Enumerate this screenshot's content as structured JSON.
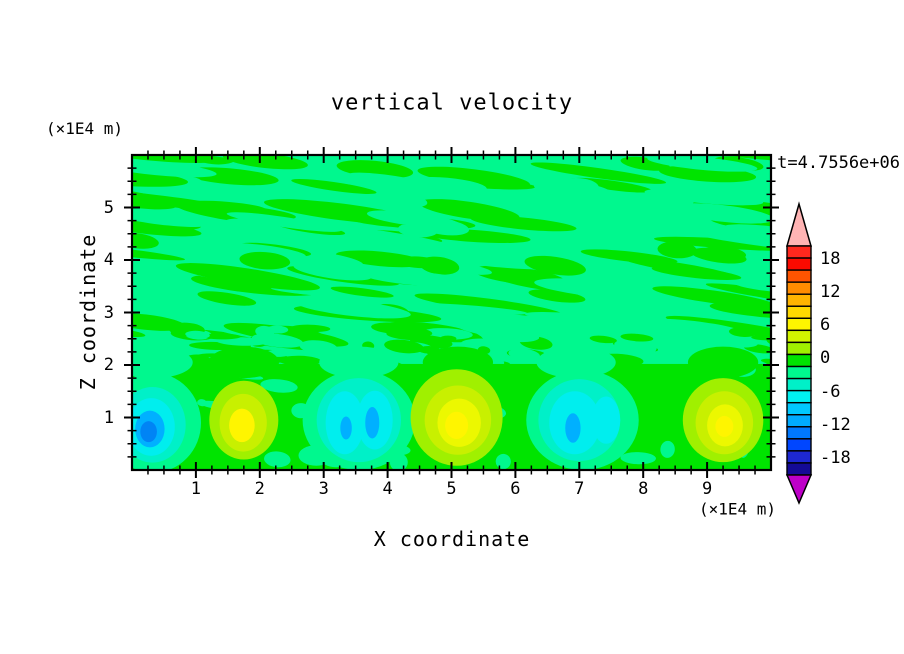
{
  "title": "vertical velocity",
  "time_label": "t=4.7556e+06",
  "x_axis": {
    "label": "X coordinate",
    "unit": "(×1E4 m)",
    "tick_labels": [
      "1",
      "2",
      "3",
      "4",
      "5",
      "6",
      "7",
      "8",
      "9"
    ],
    "tick_values": [
      1,
      2,
      3,
      4,
      5,
      6,
      7,
      8,
      9
    ],
    "range": [
      0,
      10
    ],
    "minor_step": 0.25
  },
  "z_axis": {
    "label": "Z coordinate",
    "unit": "(×1E4 m)",
    "tick_labels": [
      "1",
      "2",
      "3",
      "4",
      "5"
    ],
    "tick_values": [
      1,
      2,
      3,
      4,
      5
    ],
    "range": [
      0,
      6
    ],
    "minor_step": 0.25
  },
  "colorbar": {
    "tick_labels": [
      "18",
      "12",
      "6",
      "0",
      "-6",
      "-12",
      "-18"
    ],
    "tick_values": [
      18,
      12,
      6,
      0,
      -6,
      -12,
      -18
    ],
    "cell_colors": [
      "#ff281e",
      "#fa0a00",
      "#ff5400",
      "#ff8c00",
      "#ffb400",
      "#ffd800",
      "#fff500",
      "#d2f500",
      "#a0f000",
      "#00e400",
      "#00f88e",
      "#00f0c8",
      "#00f0f0",
      "#00c8ff",
      "#00aaff",
      "#0078ff",
      "#0046ff",
      "#1e28d2",
      "#140a96"
    ],
    "over_color": "#ffb4b4",
    "under_color": "#be00c8",
    "frame_color": "#000000"
  },
  "palette": {
    "spring": "#00f88e",
    "green": "#00e400",
    "teal": "#00f0c8",
    "cyan": "#00eeee",
    "sky": "#00b0ff",
    "blue": "#0084f5",
    "chartreuse": "#a0f000",
    "yellowgreen": "#c8f000",
    "yellow": "#ecf800",
    "bright_yellow": "#fff500"
  },
  "chart_data": {
    "type": "heatmap",
    "title": "vertical velocity",
    "xlabel": "X coordinate (×1E4 m)",
    "ylabel": "Z coordinate (×1E4 m)",
    "x_range": [
      0,
      10
    ],
    "z_range": [
      0,
      6
    ],
    "time_value": 4755600,
    "colorbar_ticks": [
      18,
      12,
      6,
      0,
      -6,
      -12,
      -18
    ],
    "background_field": "weakly oscillating values near 0: diagonal mottled streaks of green (0..+3) and spring-green (-3..0) above z≈2",
    "texture": {
      "seed": 42,
      "streak_angle_deg": 5,
      "upper_streaks": 160,
      "interface_speckles": 90,
      "bottom_mottles": 26
    },
    "plumes": [
      {
        "sign": "negative",
        "x": 0.33,
        "z": 0.8,
        "peak_bin": "-12 to -9",
        "layers": [
          {
            "c": "spring",
            "x": 0.33,
            "z": 0.9,
            "rx": 0.75,
            "rz": 0.95
          },
          {
            "c": "teal",
            "x": 0.32,
            "z": 0.86,
            "rx": 0.52,
            "rz": 0.72
          },
          {
            "c": "cyan",
            "x": 0.3,
            "z": 0.82,
            "rx": 0.37,
            "rz": 0.55
          },
          {
            "c": "sky",
            "x": 0.28,
            "z": 0.78,
            "rx": 0.23,
            "rz": 0.35
          },
          {
            "c": "blue",
            "x": 0.26,
            "z": 0.73,
            "rx": 0.13,
            "rz": 0.2
          }
        ]
      },
      {
        "sign": "positive",
        "x": 1.75,
        "z": 0.85,
        "peak_bin": "+6 to +9",
        "layers": [
          {
            "c": "chartreuse",
            "x": 1.75,
            "z": 0.95,
            "rx": 0.54,
            "rz": 0.75
          },
          {
            "c": "yellowgreen",
            "x": 1.74,
            "z": 0.9,
            "rx": 0.37,
            "rz": 0.55
          },
          {
            "c": "bright_yellow",
            "x": 1.72,
            "z": 0.85,
            "rx": 0.2,
            "rz": 0.32
          }
        ]
      },
      {
        "sign": "negative",
        "x": 3.55,
        "z": 0.9,
        "double_core": true,
        "peak_bin": "-9 to -6",
        "layers": [
          {
            "c": "spring",
            "x": 3.55,
            "z": 0.95,
            "rx": 0.88,
            "rz": 0.95
          },
          {
            "c": "teal",
            "x": 3.55,
            "z": 0.95,
            "rx": 0.66,
            "rz": 0.8
          },
          {
            "c": "cyan",
            "x": 3.33,
            "z": 0.9,
            "rx": 0.3,
            "rz": 0.6
          },
          {
            "c": "cyan",
            "x": 3.8,
            "z": 0.95,
            "rx": 0.28,
            "rz": 0.56
          },
          {
            "c": "sky",
            "x": 3.35,
            "z": 0.8,
            "rx": 0.09,
            "rz": 0.22
          },
          {
            "c": "sky",
            "x": 3.76,
            "z": 0.9,
            "rx": 0.11,
            "rz": 0.3
          }
        ]
      },
      {
        "sign": "positive",
        "x": 5.1,
        "z": 0.9,
        "strongest": true,
        "peak_bin": "+6 to +9",
        "layers": [
          {
            "c": "chartreuse",
            "x": 5.08,
            "z": 1.0,
            "rx": 0.72,
            "rz": 0.92
          },
          {
            "c": "yellowgreen",
            "x": 5.1,
            "z": 0.95,
            "rx": 0.52,
            "rz": 0.66
          },
          {
            "c": "yellow",
            "x": 5.12,
            "z": 0.9,
            "rx": 0.34,
            "rz": 0.46
          },
          {
            "c": "bright_yellow",
            "x": 5.08,
            "z": 0.85,
            "rx": 0.18,
            "rz": 0.26
          }
        ]
      },
      {
        "sign": "negative",
        "x": 6.95,
        "z": 0.88,
        "peak_bin": "-9 to -6",
        "layers": [
          {
            "c": "spring",
            "x": 7.05,
            "z": 0.95,
            "rx": 0.88,
            "rz": 0.95
          },
          {
            "c": "teal",
            "x": 7.0,
            "z": 0.95,
            "rx": 0.64,
            "rz": 0.78
          },
          {
            "c": "cyan",
            "x": 6.93,
            "z": 0.9,
            "rx": 0.4,
            "rz": 0.6
          },
          {
            "c": "cyan",
            "x": 7.42,
            "z": 0.95,
            "rx": 0.22,
            "rz": 0.45
          },
          {
            "c": "sky",
            "x": 6.9,
            "z": 0.8,
            "rx": 0.12,
            "rz": 0.28
          }
        ]
      },
      {
        "sign": "positive",
        "x": 9.25,
        "z": 0.88,
        "peak_bin": "+6 to +9",
        "layers": [
          {
            "c": "chartreuse",
            "x": 9.25,
            "z": 0.95,
            "rx": 0.63,
            "rz": 0.8
          },
          {
            "c": "yellowgreen",
            "x": 9.27,
            "z": 0.9,
            "rx": 0.45,
            "rz": 0.6
          },
          {
            "c": "yellow",
            "x": 9.28,
            "z": 0.85,
            "rx": 0.28,
            "rz": 0.4
          },
          {
            "c": "bright_yellow",
            "x": 9.27,
            "z": 0.83,
            "rx": 0.14,
            "rz": 0.2
          }
        ]
      }
    ]
  }
}
